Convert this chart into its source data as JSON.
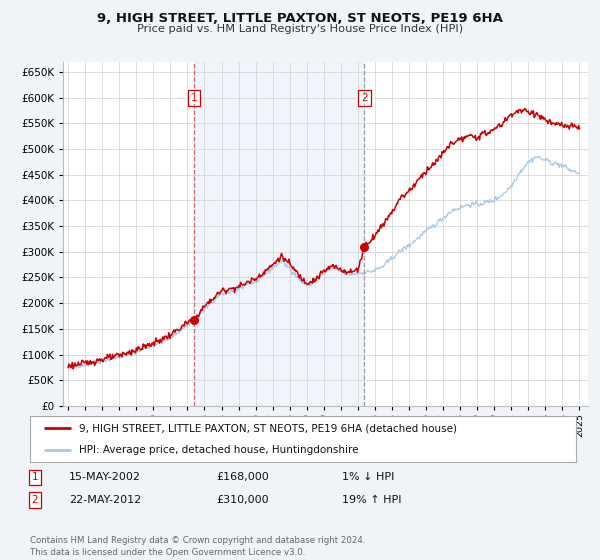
{
  "title": "9, HIGH STREET, LITTLE PAXTON, ST NEOTS, PE19 6HA",
  "subtitle": "Price paid vs. HM Land Registry's House Price Index (HPI)",
  "hpi_color": "#a8c8e8",
  "price_color": "#cc0000",
  "background_color": "#f0f4f8",
  "plot_bg_color": "#ffffff",
  "grid_color": "#cccccc",
  "legend_label_price": "9, HIGH STREET, LITTLE PAXTON, ST NEOTS, PE19 6HA (detached house)",
  "legend_label_hpi": "HPI: Average price, detached house, Huntingdonshire",
  "sale1_date": "15-MAY-2002",
  "sale1_price": "£168,000",
  "sale1_hpi": "1% ↓ HPI",
  "sale1_year": 2002.37,
  "sale1_value": 168000,
  "sale2_date": "22-MAY-2012",
  "sale2_price": "£310,000",
  "sale2_hpi": "19% ↑ HPI",
  "sale2_year": 2012.38,
  "sale2_value": 310000,
  "footer": "Contains HM Land Registry data © Crown copyright and database right 2024.\nThis data is licensed under the Open Government Licence v3.0.",
  "ylim": [
    0,
    670000
  ],
  "xlim_start": 1994.7,
  "xlim_end": 2025.5
}
